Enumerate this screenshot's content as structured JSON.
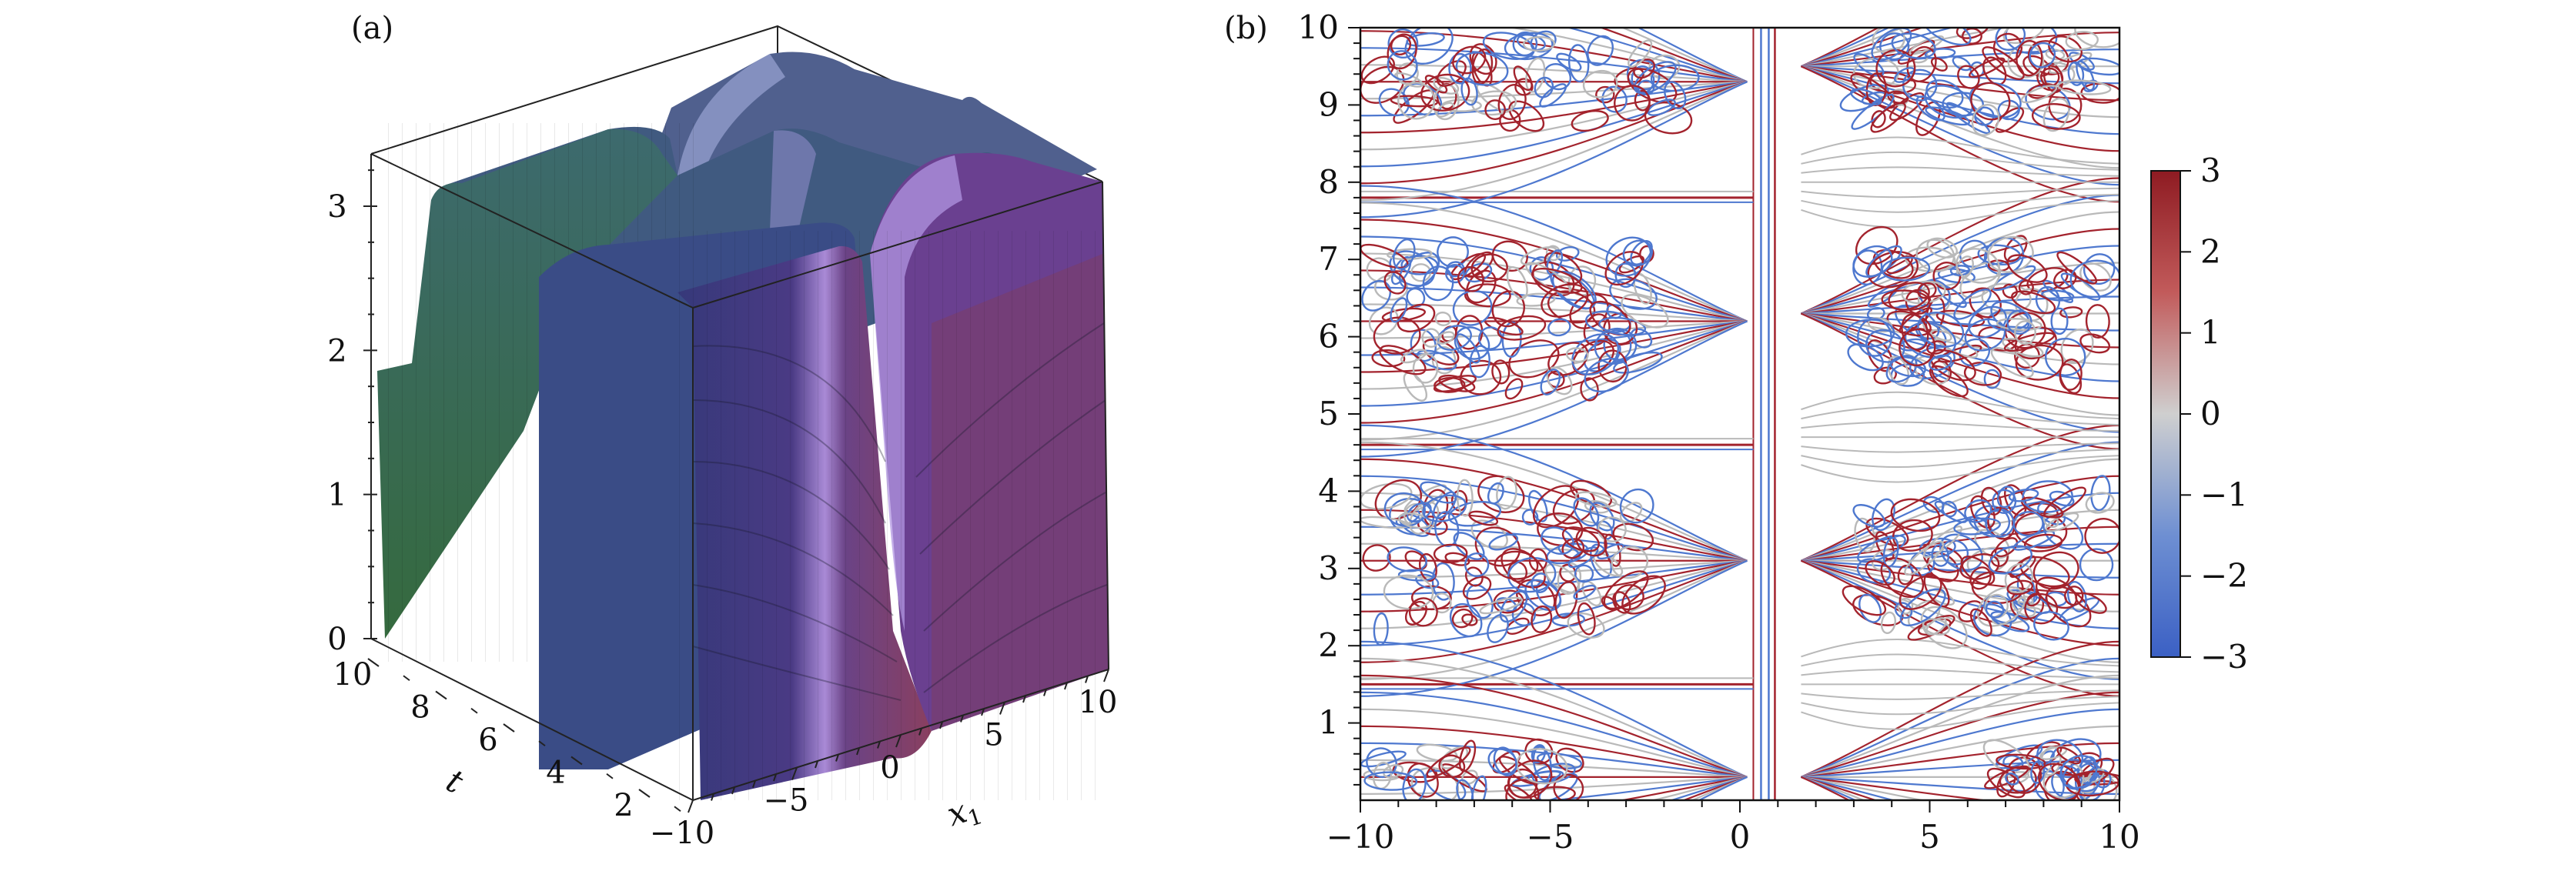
{
  "chart_data": [
    {
      "panel_label": "(a)",
      "type": "surface3d",
      "z_ticks": [
        "0",
        "1",
        "2",
        "3"
      ],
      "t_label": "t",
      "t_ticks": [
        "2",
        "4",
        "6",
        "8",
        "10"
      ],
      "x_label": "x",
      "x_label_sub": "1",
      "x_ticks": [
        "−10",
        "−5",
        "0",
        "5",
        "10"
      ],
      "xlim": [
        -10,
        10
      ],
      "tlim": [
        0,
        10
      ],
      "zlim": [
        0,
        3.3
      ],
      "wave_plateau_height": 3.3,
      "colors": {
        "green": "#3f6b4a",
        "teal": "#3d5f70",
        "blue": "#3a3f7d",
        "violet": "#5e3f86",
        "pink": "#8b4f85",
        "light": "#a98ad6"
      }
    },
    {
      "panel_label": "(b)",
      "type": "contour",
      "x_ticks": [
        "−10",
        "−5",
        "0",
        "5",
        "10"
      ],
      "y_ticks": [
        "1",
        "2",
        "3",
        "4",
        "5",
        "6",
        "7",
        "8",
        "9",
        "10"
      ],
      "xlim": [
        -10,
        10
      ],
      "ylim": [
        0,
        10
      ],
      "colorbar": {
        "ticks": [
          "3",
          "2",
          "1",
          "0",
          "−1",
          "−2",
          "−3"
        ],
        "range": [
          -3,
          3
        ],
        "colors": [
          "#b2182b",
          "#c9c9c9",
          "#4a73c8"
        ]
      },
      "horizontal_bands_y": [
        1.5,
        4.6,
        7.8
      ],
      "vertical_band_x": 0.8
    }
  ]
}
